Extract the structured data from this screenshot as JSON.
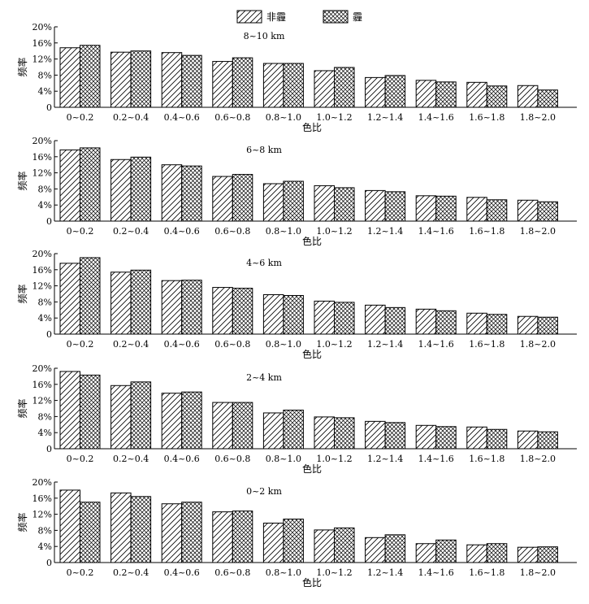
{
  "chart_data": [
    {
      "type": "bar",
      "title": "8~10 km",
      "xlabel": "色比",
      "ylabel": "频率",
      "categories": [
        "0~0.2",
        "0.2~0.4",
        "0.4~0.6",
        "0.6~0.8",
        "0.8~1.0",
        "1.0~1.2",
        "1.2~1.4",
        "1.4~1.6",
        "1.6~1.8",
        "1.8~2.0"
      ],
      "series": [
        {
          "name": "非霾",
          "values": [
            14.8,
            13.7,
            13.6,
            11.4,
            10.9,
            9.1,
            7.4,
            6.7,
            6.2,
            5.4
          ]
        },
        {
          "name": "霾",
          "values": [
            15.4,
            14.0,
            12.9,
            12.3,
            10.9,
            9.9,
            7.9,
            6.3,
            5.3,
            4.3
          ]
        }
      ],
      "ylim": [
        0,
        20
      ],
      "yticks": [
        "0",
        "4%",
        "8%",
        "12%",
        "16%",
        "20%"
      ],
      "legend": "top-center"
    },
    {
      "type": "bar",
      "title": "6~8 km",
      "xlabel": "色比",
      "ylabel": "频率",
      "categories": [
        "0~0.2",
        "0.2~0.4",
        "0.4~0.6",
        "0.6~0.8",
        "0.8~1.0",
        "1.0~1.2",
        "1.2~1.4",
        "1.4~1.6",
        "1.6~1.8",
        "1.8~2.0"
      ],
      "series": [
        {
          "name": "非霾",
          "values": [
            17.7,
            15.3,
            14.0,
            11.1,
            9.3,
            8.8,
            7.6,
            6.3,
            5.9,
            5.2
          ]
        },
        {
          "name": "霾",
          "values": [
            18.2,
            15.9,
            13.7,
            11.6,
            9.9,
            8.3,
            7.3,
            6.2,
            5.3,
            4.8
          ]
        }
      ],
      "ylim": [
        0,
        20
      ],
      "yticks": [
        "0",
        "4%",
        "8%",
        "12%",
        "16%",
        "20%"
      ]
    },
    {
      "type": "bar",
      "title": "4~6 km",
      "xlabel": "色比",
      "ylabel": "频率",
      "categories": [
        "0~0.2",
        "0.2~0.4",
        "0.4~0.6",
        "0.6~0.8",
        "0.8~1.0",
        "1.0~1.2",
        "1.2~1.4",
        "1.4~1.6",
        "1.6~1.8",
        "1.8~2.0"
      ],
      "series": [
        {
          "name": "非霾",
          "values": [
            17.6,
            15.4,
            13.3,
            11.6,
            9.8,
            8.2,
            7.2,
            6.2,
            5.2,
            4.4
          ]
        },
        {
          "name": "霾",
          "values": [
            19.0,
            15.9,
            13.4,
            11.4,
            9.6,
            7.9,
            6.6,
            5.8,
            4.9,
            4.2
          ]
        }
      ],
      "ylim": [
        0,
        20
      ],
      "yticks": [
        "0",
        "4%",
        "8%",
        "12%",
        "16%",
        "20%"
      ]
    },
    {
      "type": "bar",
      "title": "2~4 km",
      "xlabel": "色比",
      "ylabel": "频率",
      "categories": [
        "0~0.2",
        "0.2~0.4",
        "0.4~0.6",
        "0.6~0.8",
        "0.8~1.0",
        "1.0~1.2",
        "1.2~1.4",
        "1.4~1.6",
        "1.6~1.8",
        "1.8~2.0"
      ],
      "series": [
        {
          "name": "非霾",
          "values": [
            19.2,
            15.7,
            13.8,
            11.5,
            8.9,
            7.9,
            6.8,
            5.8,
            5.4,
            4.4
          ]
        },
        {
          "name": "霾",
          "values": [
            18.3,
            16.6,
            14.1,
            11.5,
            9.6,
            7.7,
            6.5,
            5.5,
            4.8,
            4.2
          ]
        }
      ],
      "ylim": [
        0,
        20
      ],
      "yticks": [
        "0",
        "4%",
        "8%",
        "12%",
        "16%",
        "20%"
      ]
    },
    {
      "type": "bar",
      "title": "0~2 km",
      "xlabel": "色比",
      "ylabel": "频率",
      "categories": [
        "0~0.2",
        "0.2~0.4",
        "0.4~0.6",
        "0.6~0.8",
        "0.8~1.0",
        "1.0~1.2",
        "1.2~1.4",
        "1.4~1.6",
        "1.6~1.8",
        "1.8~2.0"
      ],
      "series": [
        {
          "name": "非霾",
          "values": [
            18.0,
            17.3,
            14.6,
            12.6,
            9.8,
            8.1,
            6.2,
            4.7,
            4.4,
            3.8
          ]
        },
        {
          "name": "霾",
          "values": [
            15.0,
            16.4,
            15.0,
            12.8,
            10.8,
            8.6,
            6.9,
            5.6,
            4.7,
            3.9
          ]
        }
      ],
      "ylim": [
        0,
        20
      ],
      "yticks": [
        "0",
        "4%",
        "8%",
        "12%",
        "16%",
        "20%"
      ]
    }
  ]
}
